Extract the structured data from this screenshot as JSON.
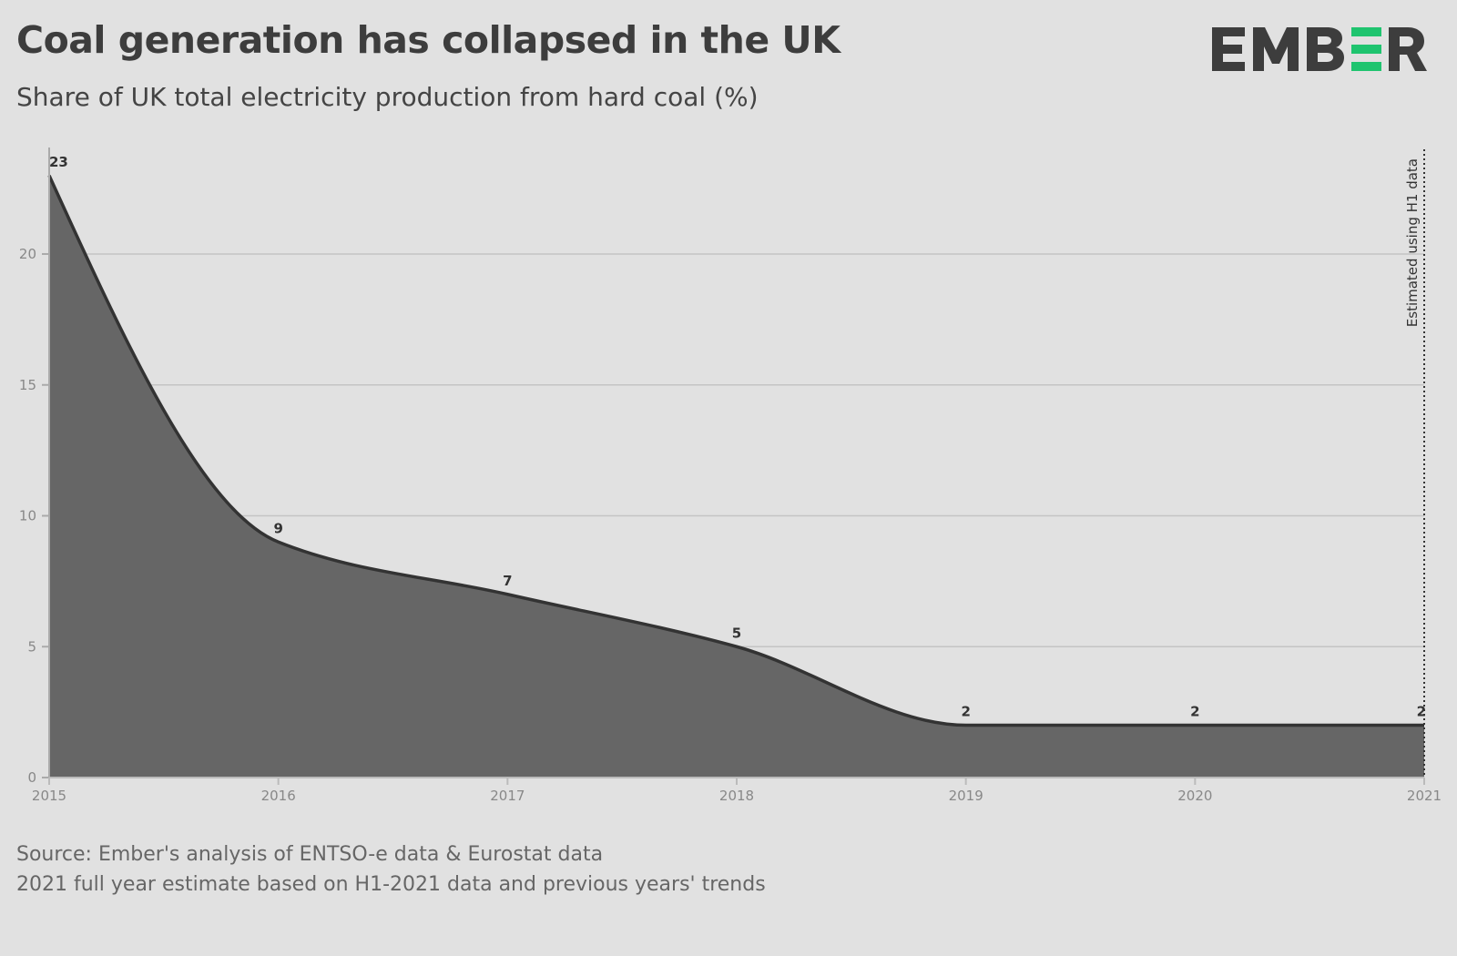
{
  "title": "Coal generation has collapsed in the UK",
  "subtitle": "Share of UK total electricity production from hard coal (%)",
  "logo": {
    "text": "EMBER",
    "colors": {
      "dark": "#3d3d3d",
      "accent": "#1fc46f"
    }
  },
  "source": {
    "line1": "Source: Ember's analysis of ENTSO-e data & Eurostat data",
    "line2": "2021 full year estimate based on H1-2021 data and previous years' trends"
  },
  "chart_data": {
    "type": "area",
    "x": [
      2015,
      2016,
      2017,
      2018,
      2019,
      2020,
      2021
    ],
    "values": [
      23,
      9,
      7,
      5,
      2,
      2,
      2
    ],
    "data_labels": [
      "23",
      "9",
      "7",
      "5",
      "2",
      "2",
      "2"
    ],
    "x_ticks": [
      "2015",
      "2016",
      "2017",
      "2018",
      "2019",
      "2020",
      "2021"
    ],
    "y_ticks": [
      "0",
      "5",
      "10",
      "15",
      "20"
    ],
    "ylim": [
      0,
      24
    ],
    "xlim": [
      2015,
      2021
    ],
    "grid": "horizontal",
    "annotation": "Estimated using H1 data",
    "colors": {
      "fill": "#666666",
      "line": "#333333",
      "grid": "#c4c4c4",
      "background": "#e1e1e1"
    }
  }
}
